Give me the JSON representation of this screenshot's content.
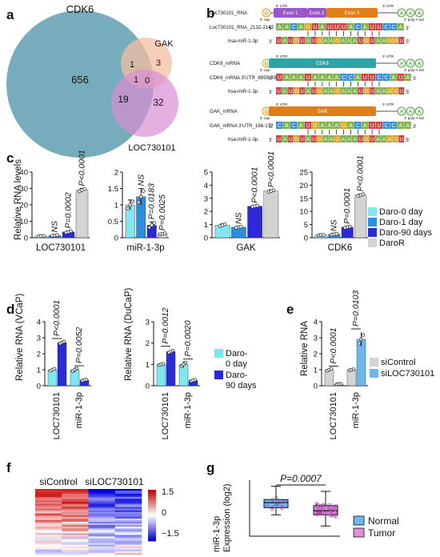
{
  "panel_letters": [
    "a",
    "b",
    "c",
    "d",
    "e",
    "f",
    "g"
  ],
  "venn": {
    "sets": [
      {
        "label": "CDK6",
        "color": "#5f9db0"
      },
      {
        "label": "GAK",
        "color": "#f4bfa0"
      },
      {
        "label": "LOC730101",
        "color": "#d98fd4"
      }
    ],
    "regions": {
      "cdk6_only": "656",
      "gak_only": "3",
      "loc_only": "32",
      "cdk6_gak": "1",
      "cdk6_loc": "19",
      "gak_loc": "0",
      "all_three": "1"
    }
  },
  "schematic": {
    "rows": [
      {
        "transcript": "Loc730101_RNA",
        "site": "Loc730101_RNA_2132-2142",
        "mirna": "hsa-miR-1-3p",
        "exons": [
          "Exon 1",
          "Exon 2",
          "Exon 3"
        ],
        "target_seq": [
          "A",
          "A",
          "C",
          "A",
          "G",
          "U",
          "A",
          "U",
          "U",
          "U",
          "A",
          "C",
          "A",
          "U",
          "U",
          "C",
          "C",
          "A"
        ],
        "mirna_seq": [
          "U",
          "A",
          "U",
          "G",
          "U",
          "A",
          "U",
          "G",
          "A",
          "A",
          "G",
          "A",
          "A",
          "A",
          "U",
          "G",
          "U",
          "A",
          "A",
          "G",
          "G",
          "U"
        ]
      },
      {
        "transcript": "CDK6_mRNA",
        "site": "CDK6_mRNA 3'UTR_8959-8966",
        "mirna": "hsa-miR-1-3p",
        "exons": [
          "CDK6"
        ],
        "target_seq": [
          "U",
          "A",
          "A",
          "A",
          "U",
          "A",
          "A",
          "A",
          "A",
          "C",
          "C",
          "A",
          "U",
          "U",
          "C",
          "C",
          "A",
          "U",
          "A"
        ],
        "mirna_seq": [
          "U",
          "A",
          "U",
          "G",
          "U",
          "A",
          "U",
          "G",
          "A",
          "A",
          "G",
          "A",
          "A",
          "A",
          "U",
          "G",
          "U",
          "A",
          "A",
          "G",
          "G",
          "U"
        ]
      },
      {
        "transcript": "GAK_mRNA",
        "site": "GAK_mRNA 3'UTR_166-172",
        "mirna": "hsa-miR-1-3p",
        "exons": [
          "GAK"
        ],
        "target_seq": [
          "C",
          "A",
          "C",
          "A",
          "U",
          "G",
          "A",
          "A",
          "A",
          "G",
          "A",
          "C",
          "A",
          "U",
          "U",
          "C",
          "C",
          "A",
          "A"
        ],
        "mirna_seq": [
          "U",
          "A",
          "U",
          "G",
          "U",
          "A",
          "U",
          "G",
          "A",
          "A",
          "G",
          "A",
          "A",
          "A",
          "U",
          "G",
          "U",
          "A",
          "A",
          "G",
          "G",
          "U"
        ]
      }
    ],
    "cap_label": "5' cap",
    "tail_label": "3' poly-A tail",
    "utr5": "5' UTR",
    "utr3": "3' UTR",
    "tail_letters": [
      "A",
      "A",
      "A"
    ],
    "cap_letter": "G",
    "end5": "5'",
    "end3": "3'",
    "nt_colors": {
      "A": "#7fb24c",
      "C": "#3a8fd4",
      "G": "#d9a520",
      "U": "#cc4444"
    }
  },
  "chart_data": [
    {
      "id": "c",
      "type": "bar",
      "ylabel": "Relative RNA levels",
      "legend": [
        "Daro-0 day",
        "Daro-1 day",
        "Daro-90 days",
        "DaroR"
      ],
      "legend_placement": "right",
      "colors": [
        "#80e6f0",
        "#2a8fe0",
        "#2a2ad6",
        "#d3d3d3"
      ],
      "subplots": [
        {
          "xlabel": "LOC730101",
          "ylim": [
            0,
            40
          ],
          "yticks": [
            0,
            10,
            20,
            30,
            40
          ],
          "values": [
            1.0,
            1.4,
            3.5,
            29.0
          ],
          "errors": [
            0.2,
            0.3,
            0.6,
            1.0
          ],
          "annotations": [
            "NS",
            "P=0.0002",
            "P<0.0001"
          ]
        },
        {
          "xlabel": "miR-1-3p",
          "ylim": [
            0,
            2.0
          ],
          "yticks": [
            0.0,
            0.5,
            1.0,
            1.5,
            2.0
          ],
          "values": [
            1.0,
            1.25,
            0.38,
            0.12
          ],
          "errors": [
            0.15,
            0.25,
            0.1,
            0.02
          ],
          "annotations": [
            "NS",
            "P=0.0183",
            "P=0.0025"
          ]
        },
        {
          "xlabel": "GAK",
          "ylim": [
            0,
            5
          ],
          "yticks": [
            0,
            1,
            2,
            3,
            4,
            5
          ],
          "values": [
            0.95,
            0.8,
            2.4,
            3.55
          ],
          "errors": [
            0.1,
            0.05,
            0.05,
            0.1
          ],
          "annotations": [
            "NS",
            "P<0.0001",
            "P<0.0001"
          ]
        },
        {
          "xlabel": "CDK6",
          "ylim": [
            0,
            25
          ],
          "yticks": [
            0,
            5,
            10,
            15,
            20,
            25
          ],
          "values": [
            1.0,
            1.3,
            4.0,
            16.2
          ],
          "errors": [
            0.1,
            0.2,
            0.3,
            0.5
          ],
          "annotations": [
            "NS",
            "P=0.0001",
            "P<0.0001"
          ]
        }
      ]
    },
    {
      "id": "d",
      "type": "bar",
      "legend": [
        "Daro-0 day",
        "Daro-90 days"
      ],
      "legend_placement": "right",
      "colors": [
        "#80e6f0",
        "#2a2ad6"
      ],
      "subplots": [
        {
          "ylabel": "Relative RNA (VCaP)",
          "ylim": [
            0,
            4
          ],
          "yticks": [
            0,
            1,
            2,
            3,
            4
          ],
          "categories": [
            "LOC730101",
            "miR-1-3p"
          ],
          "series_values": [
            [
              1.0,
              2.7
            ],
            [
              1.0,
              0.35
            ]
          ],
          "errors": [
            [
              0.1,
              0.1
            ],
            [
              0.15,
              0.05
            ]
          ],
          "annotations": [
            "P<0.0001",
            "P=0.0052"
          ]
        },
        {
          "ylabel": "Relative RNA (DuCaP)",
          "ylim": [
            0,
            3
          ],
          "yticks": [
            0,
            1,
            2,
            3
          ],
          "categories": [
            "LOC730101",
            "miR-1-3p"
          ],
          "series_values": [
            [
              1.0,
              1.6
            ],
            [
              1.0,
              0.25
            ]
          ],
          "errors": [
            [
              0.05,
              0.08
            ],
            [
              0.15,
              0.05
            ]
          ],
          "annotations": [
            "P=0.0012",
            "P=0.0020"
          ]
        }
      ]
    },
    {
      "id": "e",
      "type": "bar",
      "ylabel": "Relative RNA",
      "legend": [
        "siControl",
        "siLOC730101"
      ],
      "legend_placement": "right",
      "colors": [
        "#d3d3d3",
        "#6fb6ee"
      ],
      "ylim": [
        0,
        4
      ],
      "yticks": [
        0,
        1,
        2,
        3,
        4
      ],
      "categories": [
        "LOC730101",
        "miR-1-3p"
      ],
      "series_values": [
        [
          1.0,
          0.1
        ],
        [
          1.0,
          2.9
        ]
      ],
      "errors": [
        [
          0.1,
          0.02
        ],
        [
          0.05,
          0.45
        ]
      ],
      "annotations": [
        "P<0.0001",
        "P=0.0103"
      ]
    },
    {
      "id": "f",
      "type": "heatmap",
      "columns": [
        "siControl",
        "siLOC730101"
      ],
      "colorbar_ticks": [
        "1.5",
        "0",
        "−1.5"
      ],
      "colormap": [
        "#cc1010",
        "#ffffff",
        "#1010e0"
      ]
    },
    {
      "id": "g",
      "type": "box",
      "ylabel": "miR-1-3p\nExpression (log2)",
      "groups": [
        {
          "name": "Normal",
          "color": "#6fb6ee",
          "min": 4.6,
          "q1": 5.3,
          "median": 5.8,
          "q3": 6.1,
          "max": 7.4
        },
        {
          "name": "Tumor",
          "color": "#e08fd8",
          "min": 3.5,
          "q1": 4.6,
          "median": 5.0,
          "q3": 5.5,
          "max": 6.9
        }
      ],
      "annotation": "P=0.0007"
    }
  ]
}
